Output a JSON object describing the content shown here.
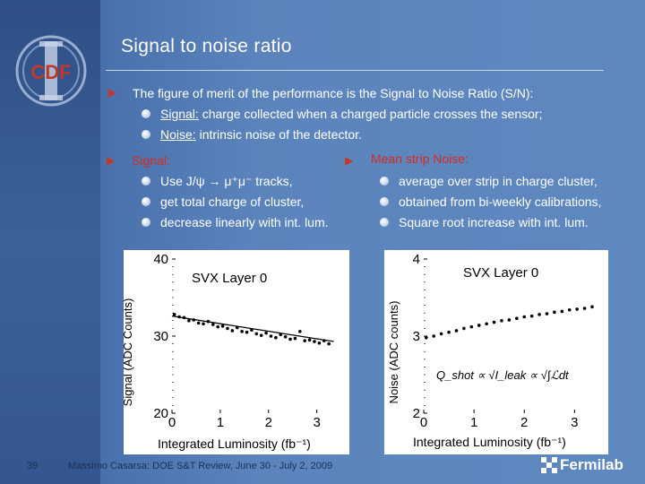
{
  "slide": {
    "title": "Signal to noise ratio",
    "logo_text": "CDF",
    "intro": {
      "text": "The figure of merit of the performance is the Signal to Noise Ratio (S/N):",
      "items": [
        {
          "term": "Signal:",
          "desc": "charge collected when a charged particle crosses the sensor;"
        },
        {
          "term": "Noise:",
          "desc": "intrinsic noise of the detector."
        }
      ]
    },
    "signal_block": {
      "heading": "Signal:",
      "items": [
        "Use J/ψ → μ⁺μ⁻ tracks,",
        "get total charge of cluster,",
        "decrease linearly with int. lum."
      ]
    },
    "noise_block": {
      "heading": "Mean strip Noise:",
      "items": [
        "average over strip in charge cluster,",
        "obtained from bi-weekly calibrations,",
        "Square root increase with int. lum."
      ]
    },
    "footer": {
      "page_number": "39",
      "text": "Massimo Casarsa: DOE S&T Review, June 30 - July 2, 2009",
      "brand": "Fermilab"
    },
    "colors": {
      "heading_red": "#d62a1e",
      "arrow_red": "#c0392b",
      "background": "#5b84bd"
    }
  },
  "chart_data": [
    {
      "type": "scatter",
      "title": "SVX Layer 0",
      "xlabel": "Integrated Luminosity (fb⁻¹)",
      "ylabel": "Signal (ADC Counts)",
      "xlim": [
        0,
        3.6
      ],
      "ylim": [
        20,
        40
      ],
      "x_ticks": [
        "0",
        "1",
        "2",
        "3"
      ],
      "y_ticks": [
        "20",
        "30",
        "40"
      ],
      "points": [
        [
          0.05,
          32.8
        ],
        [
          0.15,
          32.5
        ],
        [
          0.25,
          32.4
        ],
        [
          0.35,
          32.0
        ],
        [
          0.45,
          32.1
        ],
        [
          0.55,
          31.7
        ],
        [
          0.65,
          31.6
        ],
        [
          0.75,
          31.9
        ],
        [
          0.85,
          31.5
        ],
        [
          0.95,
          31.2
        ],
        [
          1.05,
          31.3
        ],
        [
          1.15,
          31.0
        ],
        [
          1.25,
          30.7
        ],
        [
          1.35,
          31.1
        ],
        [
          1.45,
          30.6
        ],
        [
          1.55,
          30.5
        ],
        [
          1.65,
          30.8
        ],
        [
          1.75,
          30.3
        ],
        [
          1.85,
          30.1
        ],
        [
          1.95,
          30.4
        ],
        [
          2.05,
          30.0
        ],
        [
          2.15,
          29.8
        ],
        [
          2.25,
          30.2
        ],
        [
          2.35,
          29.9
        ],
        [
          2.45,
          29.6
        ],
        [
          2.55,
          29.7
        ],
        [
          2.65,
          30.6
        ],
        [
          2.75,
          29.4
        ],
        [
          2.85,
          29.5
        ],
        [
          2.95,
          29.3
        ],
        [
          3.05,
          29.1
        ],
        [
          3.15,
          29.4
        ],
        [
          3.25,
          29.0
        ]
      ],
      "fit": {
        "x": [
          0,
          3.35
        ],
        "y": [
          32.6,
          29.3
        ]
      }
    },
    {
      "type": "scatter",
      "title": "SVX Layer 0",
      "xlabel": "Integrated Luminosity (fb⁻¹)",
      "ylabel": "Noise (ADC counts)",
      "xlim": [
        0,
        3.6
      ],
      "ylim": [
        2,
        4
      ],
      "x_ticks": [
        "0",
        "1",
        "2",
        "3"
      ],
      "y_ticks": [
        "2",
        "3",
        "4"
      ],
      "annotation": "Q_shot ∝ √I_leak ∝ √∫ℒdt",
      "points": [
        [
          0.05,
          2.98
        ],
        [
          0.2,
          3.0
        ],
        [
          0.35,
          3.03
        ],
        [
          0.5,
          3.05
        ],
        [
          0.65,
          3.07
        ],
        [
          0.8,
          3.1
        ],
        [
          0.95,
          3.12
        ],
        [
          1.1,
          3.14
        ],
        [
          1.25,
          3.16
        ],
        [
          1.4,
          3.18
        ],
        [
          1.55,
          3.2
        ],
        [
          1.7,
          3.21
        ],
        [
          1.85,
          3.23
        ],
        [
          2.0,
          3.25
        ],
        [
          2.15,
          3.26
        ],
        [
          2.3,
          3.28
        ],
        [
          2.45,
          3.29
        ],
        [
          2.6,
          3.31
        ],
        [
          2.75,
          3.32
        ],
        [
          2.9,
          3.34
        ],
        [
          3.05,
          3.35
        ],
        [
          3.2,
          3.36
        ],
        [
          3.35,
          3.38
        ]
      ]
    }
  ]
}
